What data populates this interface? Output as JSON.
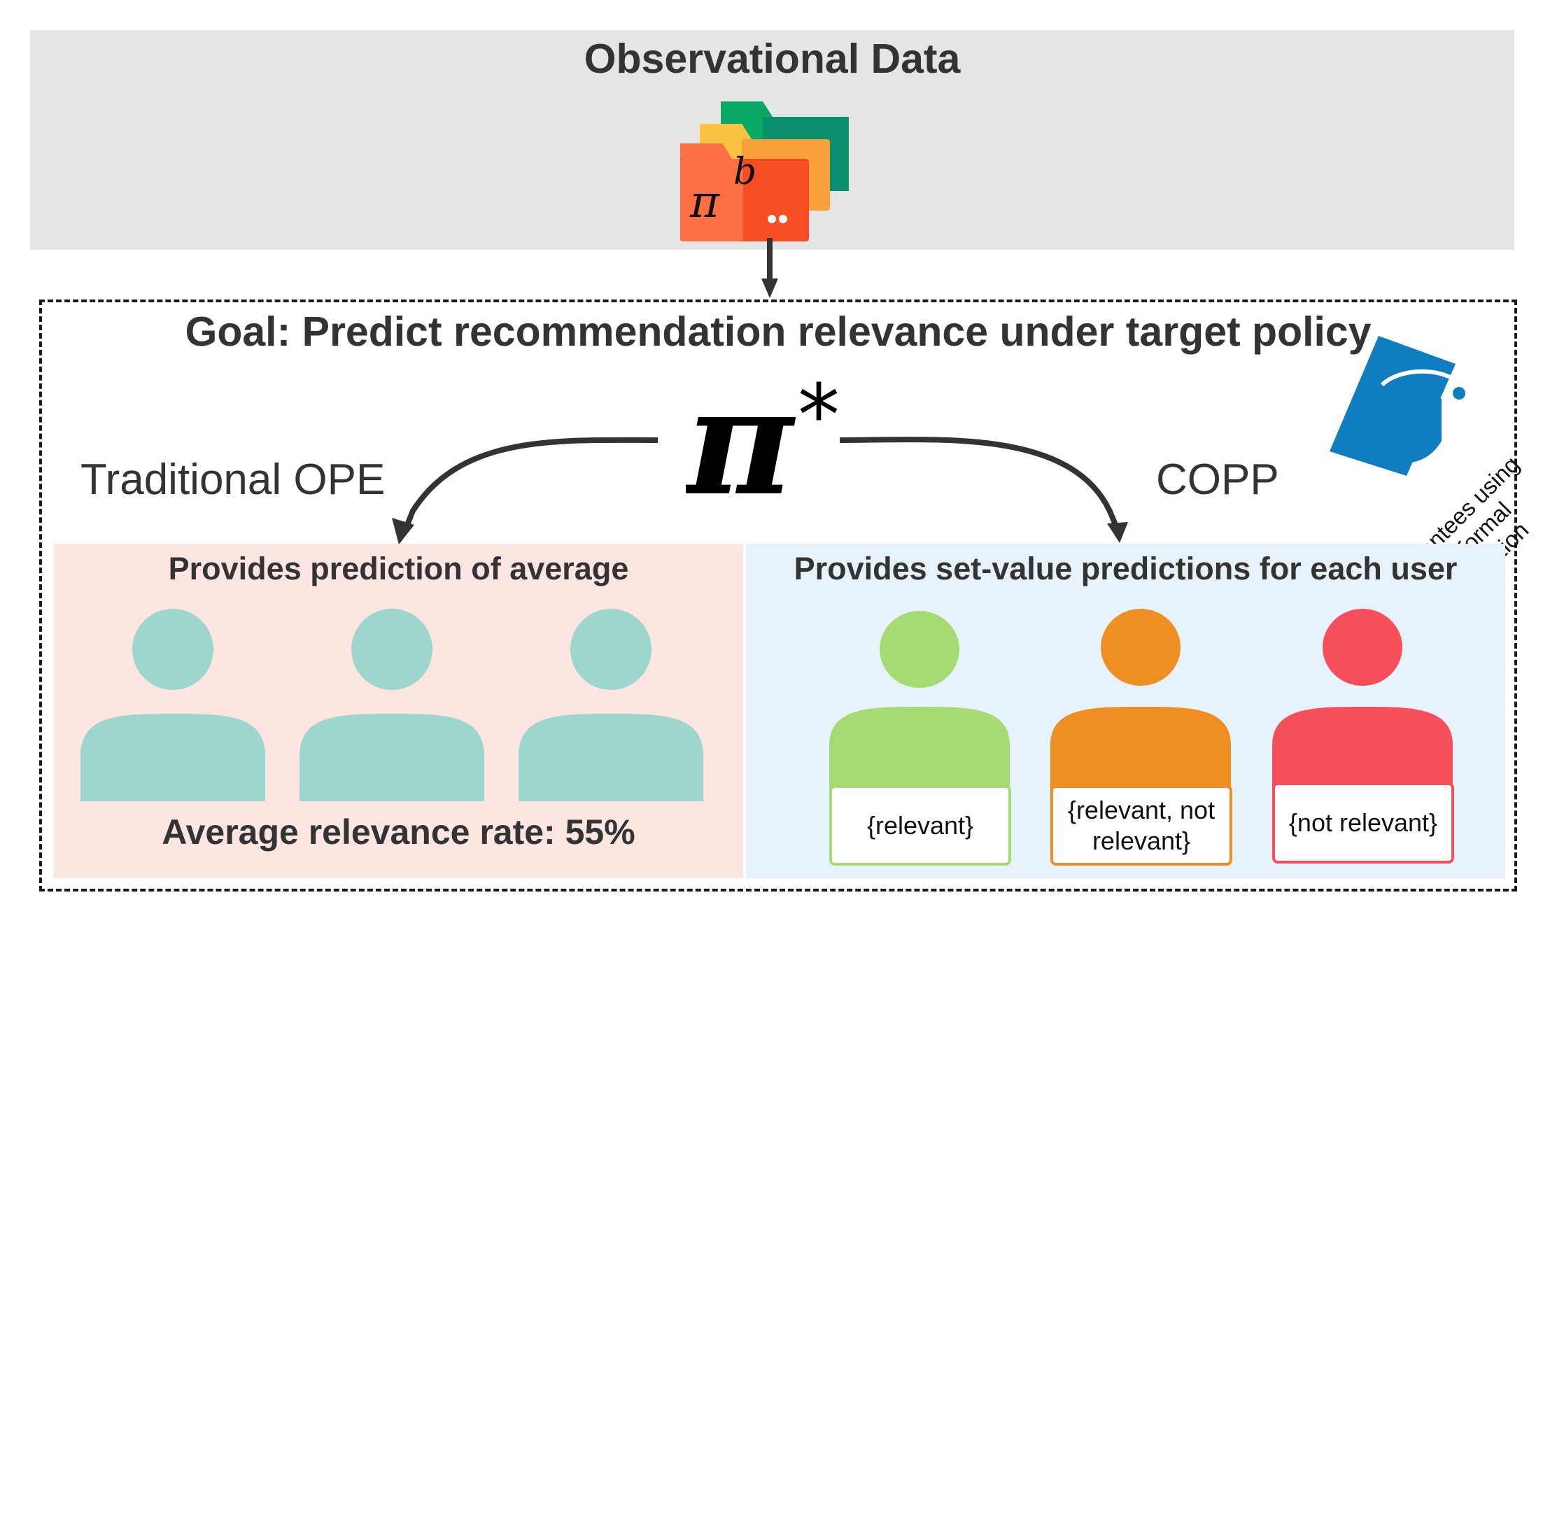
{
  "observational_data": {
    "title": "Observational Data",
    "policy_symbol": "π",
    "policy_superscript": "b"
  },
  "goal": {
    "title": "Goal: Predict recommendation relevance under target policy",
    "target_symbol": "π",
    "target_superscript": "*"
  },
  "methods": {
    "traditional_label": "Traditional OPE",
    "copp_label": "COPP"
  },
  "left_panel": {
    "heading": "Provides prediction of average",
    "average_text": "Average relevance rate: 55%",
    "user_color": "#9dd6cc"
  },
  "right_panel": {
    "heading": "Provides set-value predictions for each user",
    "users": [
      {
        "set_label": "{relevant}",
        "color": "#a6db74"
      },
      {
        "set_label": "{relevant, not relevant}",
        "color": "#ef8f23"
      },
      {
        "set_label": "{not relevant}",
        "color": "#f54f5c"
      }
    ]
  },
  "badge": {
    "text": "Guarantees using Conformal Prediction",
    "color": "#0f7dc0"
  },
  "colors": {
    "obs_panel": "#e5e5e5",
    "left_panel": "#fde6e1",
    "right_panel": "#e7f3fa",
    "arrow": "#333333"
  }
}
